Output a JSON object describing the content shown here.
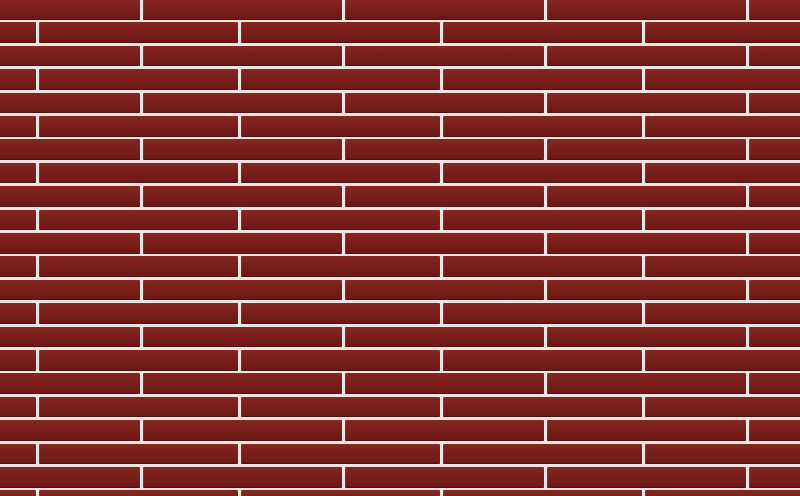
{
  "scene": "brick-wall-texture",
  "colors": {
    "brick": "#7b1f1b",
    "brick_light": "#862621",
    "brick_dark": "#6c1814",
    "mortar": "#ece6e2"
  }
}
